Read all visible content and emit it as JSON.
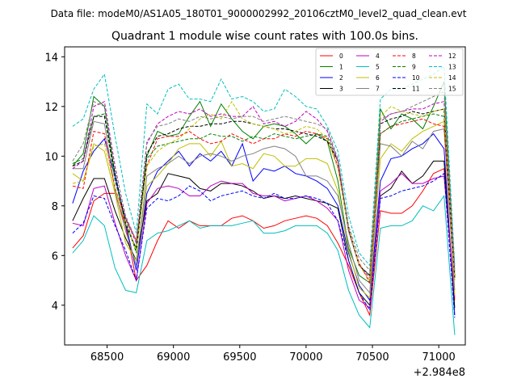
{
  "supertitle": "Data file: modeM0/AS1A05_180T01_9000002992_20106cztM0_level2_quad_clean.evt",
  "chart_data": {
    "type": "line",
    "title": "Quadrant 1 module wise count rates with 100.0s bins.",
    "xlabel": "",
    "ylabel": "",
    "x_offset_label": "+2.984e8",
    "xlim": [
      68180,
      71200
    ],
    "ylim": [
      2.4,
      14.4
    ],
    "xticks": [
      68500,
      69000,
      69500,
      70000,
      70500,
      71000
    ],
    "xtick_labels": [
      "68500",
      "69000",
      "69500",
      "70000",
      "70500",
      "71000"
    ],
    "yticks": [
      4,
      6,
      8,
      10,
      12,
      14
    ],
    "ytick_labels": [
      "4",
      "6",
      "8",
      "10",
      "12",
      "14"
    ],
    "legend_position": "top-right",
    "legend_columns": 4,
    "x": [
      68240,
      68320,
      68400,
      68480,
      68560,
      68640,
      68720,
      68800,
      68880,
      68960,
      69040,
      69120,
      69200,
      69280,
      69360,
      69440,
      69520,
      69600,
      69680,
      69760,
      69840,
      69920,
      70000,
      70080,
      70160,
      70240,
      70320,
      70400,
      70480,
      70560,
      70640,
      70720,
      70800,
      70880,
      70960,
      71040,
      71120
    ],
    "series": [
      {
        "name": "0",
        "color": "#ff0000",
        "dashed": false,
        "values": [
          6.3,
          6.8,
          8.2,
          8.5,
          8.5,
          7.2,
          5.0,
          5.6,
          6.6,
          7.4,
          7.1,
          7.4,
          7.2,
          7.2,
          7.2,
          7.5,
          7.6,
          7.4,
          7.1,
          7.2,
          7.4,
          7.5,
          7.6,
          7.5,
          7.2,
          6.5,
          5.6,
          4.5,
          3.6,
          7.8,
          7.7,
          7.7,
          8.0,
          8.6,
          9.3,
          9.5,
          4.2
        ]
      },
      {
        "name": "1",
        "color": "#008000",
        "dashed": false,
        "values": [
          9.6,
          10.1,
          12.4,
          12.0,
          9.2,
          7.2,
          6.3,
          10.0,
          11.0,
          10.8,
          10.9,
          11.6,
          12.2,
          11.2,
          12.1,
          11.5,
          11.0,
          10.7,
          11.2,
          11.3,
          11.2,
          10.9,
          10.5,
          10.9,
          10.6,
          9.0,
          6.3,
          5.2,
          4.9,
          11.9,
          11.1,
          11.7,
          11.5,
          11.1,
          12.0,
          13.0,
          5.2
        ]
      },
      {
        "name": "2",
        "color": "#0000ff",
        "dashed": false,
        "values": [
          8.1,
          9.4,
          10.2,
          10.7,
          9.2,
          7.3,
          5.4,
          8.5,
          9.4,
          9.8,
          10.2,
          9.6,
          10.1,
          9.8,
          10.2,
          9.6,
          10.5,
          9.0,
          9.5,
          9.4,
          9.6,
          9.3,
          9.2,
          9.0,
          8.7,
          8.0,
          6.1,
          4.8,
          4.2,
          9.0,
          9.9,
          10.0,
          10.3,
          10.5,
          10.9,
          10.3,
          3.6
        ]
      },
      {
        "name": "3",
        "color": "#000000",
        "dashed": false,
        "values": [
          7.4,
          8.3,
          9.1,
          9.1,
          7.8,
          6.7,
          5.8,
          8.2,
          8.5,
          9.3,
          9.2,
          9.1,
          8.7,
          8.6,
          8.9,
          8.9,
          8.8,
          8.6,
          8.3,
          8.4,
          8.3,
          8.4,
          8.3,
          8.2,
          8.1,
          7.9,
          5.8,
          4.5,
          4.0,
          8.4,
          8.7,
          9.4,
          8.9,
          9.2,
          9.8,
          9.8,
          3.9
        ]
      },
      {
        "name": "4",
        "color": "#bf00bf",
        "dashed": false,
        "values": [
          7.3,
          7.2,
          8.7,
          8.8,
          7.3,
          6.0,
          5.0,
          8.1,
          8.7,
          8.8,
          8.7,
          8.4,
          8.4,
          8.8,
          9.0,
          8.9,
          8.9,
          8.5,
          8.4,
          8.4,
          8.2,
          8.3,
          8.4,
          8.2,
          7.9,
          7.4,
          5.4,
          4.2,
          3.9,
          8.6,
          8.9,
          9.3,
          8.9,
          8.9,
          9.1,
          9.2,
          4.3
        ]
      },
      {
        "name": "5",
        "color": "#00bfbf",
        "dashed": false,
        "values": [
          6.1,
          6.6,
          7.6,
          7.2,
          5.5,
          4.6,
          4.5,
          6.6,
          6.9,
          7.0,
          7.2,
          7.4,
          7.1,
          7.2,
          7.2,
          7.2,
          7.3,
          7.4,
          6.9,
          6.9,
          7.0,
          7.2,
          7.2,
          7.2,
          6.9,
          6.2,
          4.6,
          3.6,
          3.1,
          7.1,
          7.2,
          7.2,
          7.4,
          8.0,
          7.8,
          8.4,
          2.8
        ]
      },
      {
        "name": "6",
        "color": "#bfbf00",
        "dashed": false,
        "values": [
          9.3,
          9.0,
          10.5,
          10.2,
          8.5,
          6.5,
          5.8,
          8.8,
          9.2,
          9.7,
          10.3,
          10.5,
          10.5,
          10.0,
          10.6,
          9.6,
          9.7,
          9.5,
          10.1,
          10.0,
          9.6,
          9.6,
          9.9,
          9.9,
          9.7,
          8.6,
          6.2,
          4.7,
          4.3,
          9.9,
          10.5,
          10.2,
          10.7,
          11.0,
          11.2,
          11.4,
          4.4
        ]
      },
      {
        "name": "7",
        "color": "#808080",
        "dashed": false,
        "values": [
          9.5,
          9.5,
          11.4,
          11.3,
          8.6,
          7.0,
          5.6,
          9.2,
          9.5,
          9.7,
          10.0,
          9.7,
          10.0,
          10.1,
          10.0,
          9.8,
          10.0,
          10.1,
          10.3,
          10.4,
          10.3,
          10.0,
          9.2,
          9.2,
          9.0,
          8.4,
          6.5,
          5.0,
          4.5,
          10.5,
          10.4,
          10.0,
          10.6,
          10.3,
          11.0,
          11.1,
          4.6
        ]
      },
      {
        "name": "8",
        "color": "#ff0000",
        "dashed": true,
        "values": [
          8.8,
          8.7,
          11.0,
          10.9,
          8.7,
          7.5,
          6.6,
          9.6,
          10.7,
          10.8,
          10.8,
          11.0,
          10.7,
          10.5,
          10.6,
          10.9,
          10.7,
          10.5,
          10.7,
          10.7,
          10.9,
          10.8,
          11.0,
          10.9,
          10.7,
          9.6,
          7.0,
          5.7,
          4.9,
          10.9,
          11.2,
          11.3,
          11.4,
          11.5,
          11.3,
          11.2,
          5.1
        ]
      },
      {
        "name": "9",
        "color": "#008000",
        "dashed": true,
        "values": [
          9.7,
          9.9,
          11.6,
          11.7,
          9.0,
          7.5,
          6.1,
          9.9,
          10.4,
          10.5,
          10.6,
          10.7,
          10.7,
          10.9,
          10.8,
          10.8,
          10.6,
          10.8,
          10.7,
          10.9,
          10.8,
          10.7,
          10.8,
          10.9,
          10.8,
          9.8,
          7.0,
          5.6,
          5.2,
          10.9,
          11.2,
          11.4,
          11.5,
          11.6,
          11.7,
          11.6,
          5.3
        ]
      },
      {
        "name": "10",
        "color": "#0000ff",
        "dashed": true,
        "values": [
          6.9,
          7.3,
          8.4,
          8.3,
          7.2,
          6.2,
          5.0,
          7.9,
          8.3,
          8.2,
          8.4,
          8.8,
          8.6,
          8.2,
          8.4,
          8.5,
          8.6,
          8.4,
          8.3,
          8.5,
          8.3,
          8.3,
          8.4,
          8.3,
          8.1,
          7.4,
          5.8,
          4.5,
          3.8,
          8.3,
          8.4,
          8.6,
          8.7,
          8.8,
          9.0,
          9.3,
          3.5
        ]
      },
      {
        "name": "11",
        "color": "#000000",
        "dashed": true,
        "values": [
          9.6,
          9.8,
          11.6,
          11.6,
          9.3,
          7.3,
          6.2,
          10.1,
          10.8,
          10.9,
          11.1,
          11.2,
          11.2,
          11.3,
          11.3,
          11.4,
          11.4,
          11.3,
          11.2,
          11.1,
          11.1,
          11.0,
          10.9,
          10.8,
          10.6,
          9.8,
          7.1,
          5.6,
          5.2,
          11.3,
          11.5,
          11.6,
          11.8,
          11.7,
          11.8,
          11.9,
          5.1
        ]
      },
      {
        "name": "12",
        "color": "#bf00bf",
        "dashed": true,
        "values": [
          9.5,
          9.8,
          12.0,
          12.2,
          9.6,
          7.5,
          6.5,
          10.5,
          11.3,
          11.6,
          11.8,
          11.7,
          11.9,
          11.6,
          11.7,
          11.6,
          11.6,
          12.0,
          11.3,
          11.4,
          11.2,
          11.4,
          11.8,
          11.5,
          11.0,
          9.8,
          7.0,
          5.6,
          5.1,
          11.4,
          11.7,
          11.8,
          11.9,
          11.9,
          12.1,
          12.2,
          5.5
        ]
      },
      {
        "name": "13",
        "color": "#00bfbf",
        "dashed": true,
        "values": [
          11.2,
          11.5,
          12.7,
          13.3,
          10.8,
          8.5,
          6.9,
          12.1,
          11.7,
          12.7,
          12.9,
          12.3,
          12.3,
          12.2,
          13.1,
          12.3,
          12.4,
          12.2,
          11.8,
          11.9,
          12.7,
          12.4,
          12.0,
          11.9,
          11.2,
          10.2,
          7.6,
          6.1,
          5.6,
          12.3,
          12.7,
          12.7,
          12.9,
          13.1,
          13.3,
          13.6,
          5.6
        ]
      },
      {
        "name": "14",
        "color": "#bfbf00",
        "dashed": true,
        "values": [
          8.9,
          9.0,
          10.4,
          10.5,
          8.7,
          7.3,
          6.2,
          9.6,
          10.2,
          10.5,
          10.7,
          11.1,
          11.5,
          11.7,
          11.5,
          12.2,
          11.5,
          11.3,
          11.2,
          11.1,
          10.9,
          11.0,
          11.2,
          11.1,
          10.7,
          9.5,
          7.1,
          5.6,
          5.0,
          11.6,
          12.0,
          11.8,
          11.7,
          11.6,
          11.8,
          11.9,
          5.0
        ]
      },
      {
        "name": "15",
        "color": "#808080",
        "dashed": true,
        "values": [
          9.8,
          10.5,
          12.2,
          12.0,
          9.5,
          7.6,
          6.6,
          10.6,
          11.2,
          11.3,
          11.5,
          11.4,
          11.6,
          11.5,
          11.6,
          11.5,
          11.6,
          11.6,
          11.4,
          11.5,
          11.6,
          11.5,
          11.4,
          11.3,
          11.1,
          9.9,
          7.2,
          5.9,
          5.4,
          11.5,
          11.7,
          11.8,
          12.0,
          12.2,
          12.4,
          12.6,
          5.4
        ]
      }
    ]
  }
}
